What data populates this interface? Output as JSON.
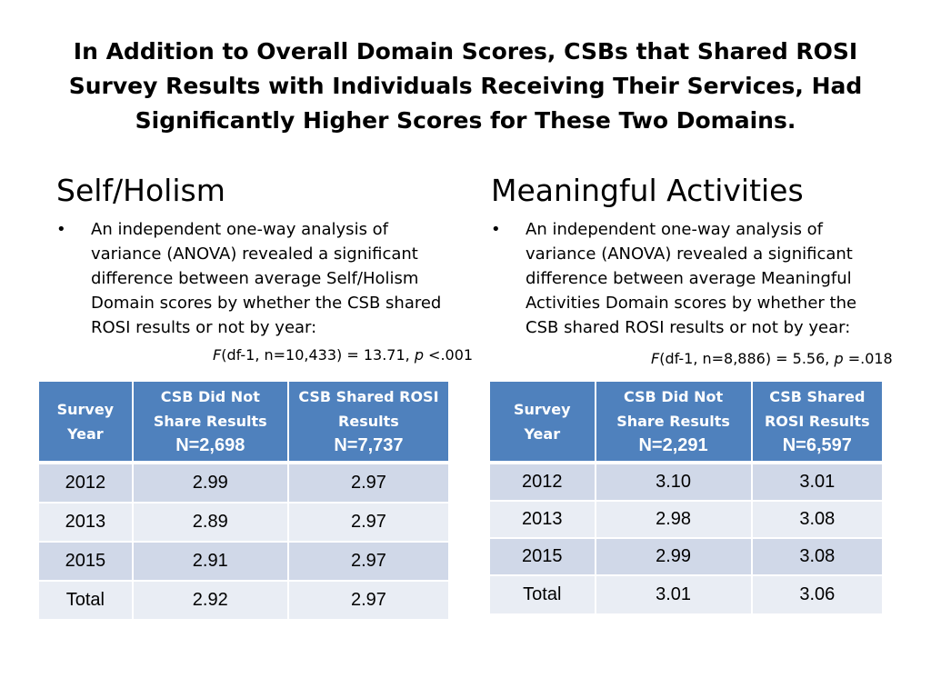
{
  "title": "In Addition to Overall Domain Scores, CSBs that Shared ROSI Survey Results with Individuals Receiving Their Services, Had Significantly Higher Scores for These Two Domains.",
  "left": {
    "heading": "Self/Holism",
    "bullet": "An independent one-way analysis of variance (ANOVA) revealed a significant difference between average Self/Holism Domain scores by whether the CSB shared ROSI results or not by year:",
    "stat": {
      "f": "F",
      "df": "(df-1,  n=10,433) = 13.71, ",
      "p": "p",
      "tail": " <.001"
    },
    "table": {
      "headers": {
        "year": "Survey Year",
        "col1": "CSB Did Not Share Results",
        "col1_n": "N=2,698",
        "col2": "CSB Shared ROSI Results",
        "col2_n": "N=7,737"
      },
      "rows": [
        {
          "year": "2012",
          "not_shared": "2.99",
          "shared": "2.97"
        },
        {
          "year": "2013",
          "not_shared": "2.89",
          "shared": "2.97"
        },
        {
          "year": "2015",
          "not_shared": "2.91",
          "shared": "2.97"
        },
        {
          "year": "Total",
          "not_shared": "2.92",
          "shared": "2.97"
        }
      ]
    }
  },
  "right": {
    "heading": "Meaningful Activities",
    "bullet": "An independent one-way analysis of variance (ANOVA) revealed a significant difference between average  Meaningful Activities Domain scores by whether the CSB shared ROSI results or not by year:",
    "stat": {
      "f": "F",
      "df": "(df-1, n=8,886) = 5.56, ",
      "p": "p",
      "tail": " =.018"
    },
    "table": {
      "headers": {
        "year": "Survey Year",
        "col1": "CSB Did Not Share Results",
        "col1_n": "N=2,291",
        "col2": "CSB Shared ROSI Results",
        "col2_n": "N=6,597"
      },
      "rows": [
        {
          "year": "2012",
          "not_shared": "3.10",
          "shared": "3.01"
        },
        {
          "year": "2013",
          "not_shared": "2.98",
          "shared": "3.08"
        },
        {
          "year": "2015",
          "not_shared": "2.99",
          "shared": "3.08"
        },
        {
          "year": "Total",
          "not_shared": "3.01",
          "shared": "3.06"
        }
      ]
    }
  },
  "bullet_char": "•"
}
